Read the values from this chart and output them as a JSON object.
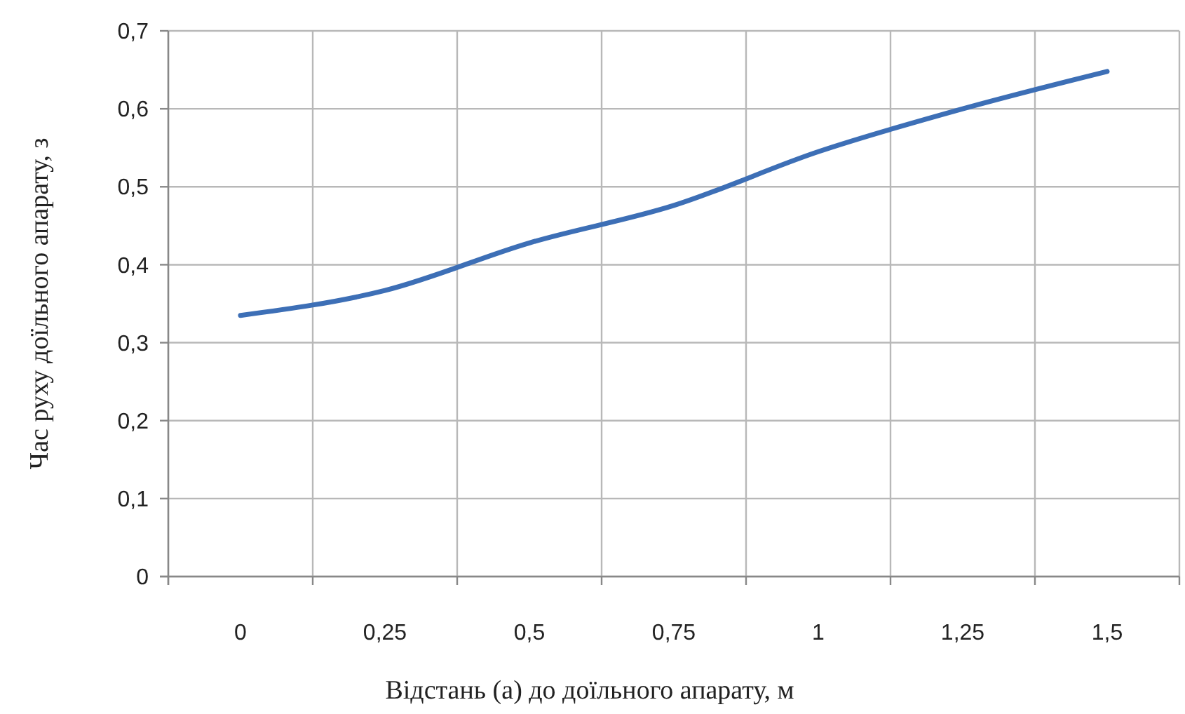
{
  "chart_data": {
    "type": "line",
    "xlabel": "Відстань (а) до доїльного апарату, м",
    "ylabel": "Час руху доїльного апарату, з",
    "categories": [
      "0",
      "0,25",
      "0,5",
      "0,75",
      "1",
      "1,25",
      "1,5"
    ],
    "series": [
      {
        "color": "#3d6fb6",
        "values": [
          0.335,
          0.367,
          0.428,
          0.476,
          0.545,
          0.6,
          0.648
        ]
      }
    ],
    "ylim": [
      0,
      0.7
    ],
    "yticks": [
      {
        "value": 0,
        "label": "0"
      },
      {
        "value": 0.1,
        "label": "0,1"
      },
      {
        "value": 0.2,
        "label": "0,2"
      },
      {
        "value": 0.3,
        "label": "0,3"
      },
      {
        "value": 0.4,
        "label": "0,4"
      },
      {
        "value": 0.5,
        "label": "0,5"
      },
      {
        "value": 0.6,
        "label": "0,6"
      },
      {
        "value": 0.7,
        "label": "0,7"
      }
    ],
    "grid": true,
    "marker": "none",
    "line_style": "solid"
  }
}
